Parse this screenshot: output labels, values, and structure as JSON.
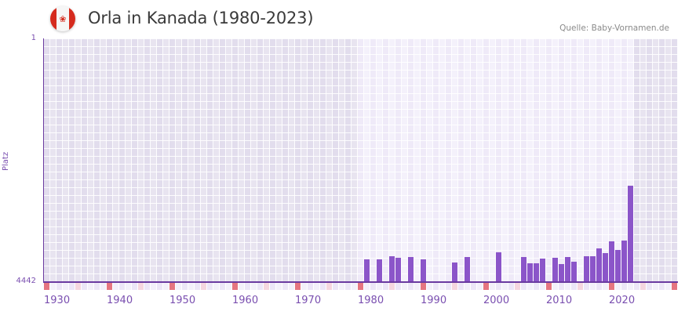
{
  "header": {
    "flag_icon": "canada-flag-icon",
    "title": "Orla in Kanada (1980-2023)",
    "source": "Quelle: Baby-Vornamen.de"
  },
  "colors": {
    "bar": "#8b55c9",
    "axis": "#6a3aa0",
    "data_range_bg_a": "#efeaf8",
    "data_range_bg_b": "#f4f1fb",
    "outside_bg_a": "#e2dded",
    "outside_bg_b": "#e8e4f0",
    "decade_marker": "#e57580",
    "halfdecade_marker": "#f5d6df",
    "marker_a": "#ece6f7",
    "marker_b": "#f3f0fa"
  },
  "chart_data": {
    "type": "bar",
    "title": "Orla in Kanada (1980-2023)",
    "xlabel": "",
    "ylabel": "Platz",
    "y_ticks": [
      "1",
      "4442"
    ],
    "ylim": [
      4442,
      1
    ],
    "x_range": [
      1930,
      2030
    ],
    "data_range": [
      1980,
      2023
    ],
    "x_ticks": [
      "1930",
      "1940",
      "1950",
      "1960",
      "1970",
      "1980",
      "1990",
      "2000",
      "2010",
      "2020"
    ],
    "grid": true,
    "categories": [
      1981,
      1983,
      1985,
      1986,
      1988,
      1990,
      1995,
      1997,
      2002,
      2006,
      2007,
      2008,
      2009,
      2011,
      2012,
      2013,
      2014,
      2016,
      2017,
      2018,
      2019,
      2020,
      2021,
      2022,
      2023
    ],
    "series": [
      {
        "name": "Platz",
        "values": [
          4028,
          4028,
          3971,
          3999,
          3985,
          4028,
          4085,
          3985,
          3899,
          3985,
          4099,
          4099,
          4014,
          3999,
          4114,
          3985,
          4071,
          3971,
          3971,
          3828,
          3914,
          3699,
          3857,
          3685,
          2686
        ]
      }
    ]
  }
}
